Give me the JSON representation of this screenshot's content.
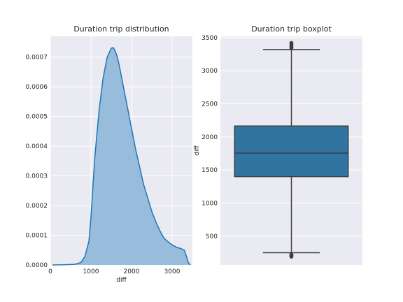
{
  "colors": {
    "background": "#EAEAF2",
    "grid": "#FFFFFF",
    "hist_fill": "#97BCDC",
    "kde_line": "#1F77B4",
    "box_fill": "#3274A1",
    "box_edge": "#3F3F3F"
  },
  "chart_data": [
    {
      "type": "area",
      "title": "Duration trip distribution",
      "xlabel": "diff",
      "ylabel": "",
      "xlim": [
        0,
        3500
      ],
      "ylim": [
        0,
        0.00077
      ],
      "xticks": [
        0,
        1000,
        2000,
        3000
      ],
      "yticks": [
        0,
        0.0001,
        0.0002,
        0.0003,
        0.0004,
        0.0005,
        0.0006,
        0.0007
      ],
      "ytick_labels": [
        "0.0000",
        "0.0001",
        "0.0002",
        "0.0003",
        "0.0004",
        "0.0005",
        "0.0006",
        "0.0007"
      ],
      "grid": true,
      "series": [
        {
          "x": [
            50,
            300,
            600,
            750,
            850,
            950,
            1000,
            1050,
            1100,
            1200,
            1300,
            1400,
            1500,
            1550,
            1600,
            1650,
            1700,
            1800,
            1900,
            2000,
            2100,
            2200,
            2300,
            2400,
            2500,
            2600,
            2700,
            2800,
            2900,
            3000,
            3100,
            3200,
            3300,
            3350,
            3400,
            3450
          ],
          "y": [
            0,
            5e-07,
            2e-06,
            8e-06,
            2.8e-05,
            8e-05,
            0.00016,
            0.00027,
            0.00037,
            0.00052,
            0.00063,
            0.0007,
            0.00073,
            0.000732,
            0.00072,
            0.0007,
            0.00067,
            0.0006,
            0.00053,
            0.00046,
            0.00039,
            0.00033,
            0.00027,
            0.000225,
            0.00018,
            0.000145,
            0.000115,
            9e-05,
            7.8e-05,
            6.8e-05,
            6e-05,
            5.6e-05,
            5e-05,
            3e-05,
            8e-06,
            0
          ]
        }
      ]
    },
    {
      "type": "box",
      "title": "Duration trip boxplot",
      "xlabel": "",
      "ylabel": "diff",
      "ylim": [
        65,
        3520
      ],
      "yticks": [
        500,
        1000,
        1500,
        2000,
        2500,
        3000,
        3500
      ],
      "grid": true,
      "box": {
        "whisker_low": 250,
        "q1": 1400,
        "median": 1755,
        "q3": 2165,
        "whisker_high": 3320,
        "outliers_high": [
          3340,
          3360,
          3380,
          3400,
          3420
        ],
        "outliers_low": [
          190,
          200,
          210,
          225
        ]
      }
    }
  ]
}
